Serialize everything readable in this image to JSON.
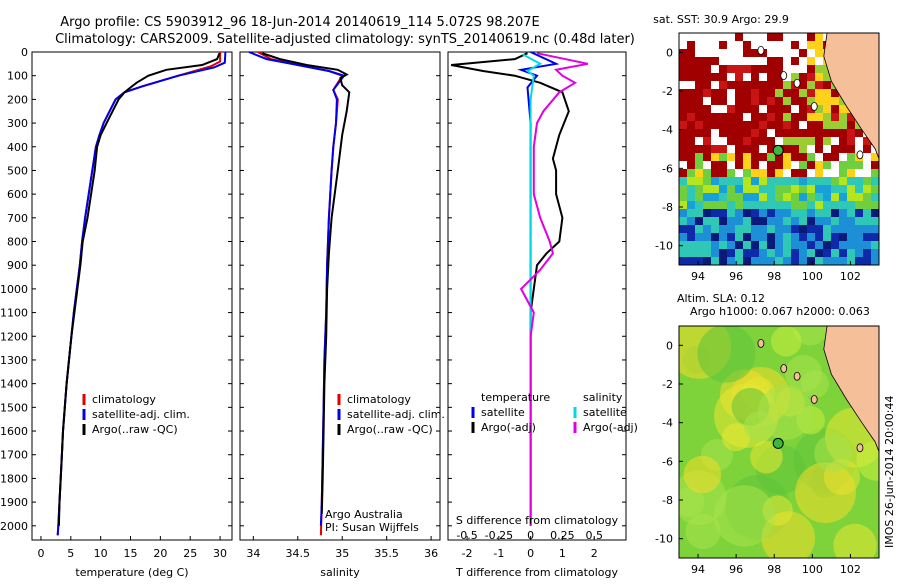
{
  "figure": {
    "title_line1": "Argo profile: CS 5903912_96 18-Jun-2014 20140619_114 5.072S 98.207E",
    "title_line2": "Climatology: CARS2009. Satellite-adjusted climatology: synTS_20140619.nc (0.48d later)",
    "credit_line1": "Argo Australia",
    "credit_line2": "PI: Susan Wijffels",
    "imos_stamp": "IMOS 26-Jun-2014 20:00:44",
    "sst_title": "sat. SST: 30.9 Argo: 29.9",
    "sla_title_line1": "Altim. SLA: 0.12",
    "sla_title_line2": "Argo h1000: 0.067 h2000: 0.063"
  },
  "colors": {
    "climatology": "#e00000",
    "satellite": "#0000ee",
    "argo": "#000000",
    "satellite_salinity": "#00d8e8",
    "argo_salinity": "#e000e0",
    "land": "#f5bf9a"
  },
  "chart_data": [
    {
      "type": "line",
      "id": "temperature",
      "xlabel": "temperature (deg C)",
      "ylabel": "",
      "xlim": [
        -1.5,
        32
      ],
      "ylim": [
        2060,
        0
      ],
      "xticks": [
        0,
        5,
        10,
        15,
        20,
        25,
        30
      ],
      "yticks": [
        0,
        100,
        200,
        300,
        400,
        500,
        600,
        700,
        800,
        900,
        1000,
        1100,
        1200,
        1300,
        1400,
        1500,
        1600,
        1700,
        1800,
        1900,
        2000
      ],
      "legend": [
        "climatology",
        "satellite-adj. clim.",
        "Argo(..raw -QC)"
      ],
      "legend_position": "lower-right",
      "series": [
        {
          "name": "climatology",
          "color": "climatology",
          "points": [
            [
              30.0,
              0
            ],
            [
              30.0,
              40
            ],
            [
              28.5,
              60
            ],
            [
              23,
              100
            ],
            [
              17,
              145
            ],
            [
              14,
              170
            ],
            [
              12.5,
              200
            ],
            [
              11.5,
              250
            ],
            [
              10.5,
              300
            ],
            [
              9.8,
              350
            ],
            [
              9.2,
              400
            ],
            [
              8.6,
              500
            ],
            [
              8.0,
              600
            ],
            [
              7.4,
              700
            ],
            [
              6.9,
              800
            ],
            [
              6.5,
              900
            ],
            [
              6.0,
              1000
            ],
            [
              5.5,
              1100
            ],
            [
              5.1,
              1200
            ],
            [
              4.7,
              1300
            ],
            [
              4.3,
              1400
            ],
            [
              4.0,
              1500
            ],
            [
              3.7,
              1600
            ],
            [
              3.5,
              1700
            ],
            [
              3.3,
              1800
            ],
            [
              3.1,
              1900
            ],
            [
              2.9,
              2000
            ],
            [
              2.8,
              2040
            ]
          ]
        },
        {
          "name": "satellite-adj. clim.",
          "color": "satellite",
          "points": [
            [
              30.9,
              0
            ],
            [
              30.8,
              45
            ],
            [
              29,
              65
            ],
            [
              23,
              100
            ],
            [
              17,
              145
            ],
            [
              14,
              170
            ],
            [
              12.5,
              200
            ],
            [
              11.5,
              250
            ],
            [
              10.5,
              300
            ],
            [
              9.8,
              350
            ],
            [
              9.2,
              400
            ],
            [
              8.6,
              500
            ],
            [
              8.0,
              600
            ],
            [
              7.4,
              700
            ],
            [
              6.9,
              800
            ],
            [
              6.5,
              900
            ],
            [
              6.0,
              1000
            ],
            [
              5.5,
              1100
            ],
            [
              5.1,
              1200
            ],
            [
              4.7,
              1300
            ],
            [
              4.3,
              1400
            ],
            [
              4.0,
              1500
            ],
            [
              3.7,
              1600
            ],
            [
              3.5,
              1700
            ],
            [
              3.3,
              1800
            ],
            [
              3.1,
              1900
            ],
            [
              2.9,
              2000
            ],
            [
              2.8,
              2040
            ]
          ]
        },
        {
          "name": "Argo(..raw -QC)",
          "color": "argo",
          "points": [
            [
              29.9,
              5
            ],
            [
              29.5,
              30
            ],
            [
              27,
              55
            ],
            [
              21,
              75
            ],
            [
              18,
              100
            ],
            [
              16,
              130
            ],
            [
              15,
              150
            ],
            [
              14,
              170
            ],
            [
              13,
              200
            ],
            [
              12,
              250
            ],
            [
              11,
              300
            ],
            [
              10,
              350
            ],
            [
              9.4,
              400
            ],
            [
              9.0,
              500
            ],
            [
              8.4,
              600
            ],
            [
              7.8,
              700
            ],
            [
              7.0,
              800
            ],
            [
              6.6,
              900
            ],
            [
              6.1,
              1000
            ],
            [
              5.6,
              1100
            ],
            [
              5.1,
              1200
            ],
            [
              4.7,
              1300
            ],
            [
              4.3,
              1400
            ],
            [
              4.0,
              1500
            ],
            [
              3.7,
              1600
            ],
            [
              3.5,
              1700
            ],
            [
              3.3,
              1800
            ],
            [
              3.1,
              1900
            ],
            [
              3.0,
              2000
            ]
          ]
        }
      ]
    },
    {
      "type": "line",
      "id": "salinity",
      "xlabel": "salinity",
      "ylabel": "",
      "xlim": [
        33.85,
        36.1
      ],
      "ylim": [
        2060,
        0
      ],
      "xticks": [
        34,
        34.5,
        35,
        35.5,
        36
      ],
      "legend": [
        "climatology",
        "satellite-adj. clim.",
        "Argo(..raw -QC)"
      ],
      "legend_position": "lower-right",
      "series": [
        {
          "name": "climatology",
          "color": "climatology",
          "points": [
            [
              34.05,
              0
            ],
            [
              34.2,
              30
            ],
            [
              34.5,
              55
            ],
            [
              34.85,
              80
            ],
            [
              35.0,
              100
            ],
            [
              34.95,
              130
            ],
            [
              34.9,
              160
            ],
            [
              34.95,
              200
            ],
            [
              34.93,
              300
            ],
            [
              34.9,
              400
            ],
            [
              34.88,
              500
            ],
            [
              34.85,
              700
            ],
            [
              34.83,
              900
            ],
            [
              34.82,
              1100
            ],
            [
              34.8,
              1300
            ],
            [
              34.79,
              1500
            ],
            [
              34.78,
              1700
            ],
            [
              34.77,
              1900
            ],
            [
              34.76,
              2040
            ]
          ]
        },
        {
          "name": "satellite-adj. clim.",
          "color": "satellite",
          "points": [
            [
              33.95,
              0
            ],
            [
              34.15,
              30
            ],
            [
              34.5,
              55
            ],
            [
              34.85,
              80
            ],
            [
              35.02,
              100
            ],
            [
              34.96,
              130
            ],
            [
              34.9,
              160
            ],
            [
              34.94,
              200
            ],
            [
              34.93,
              300
            ],
            [
              34.9,
              400
            ],
            [
              34.88,
              500
            ],
            [
              34.85,
              700
            ],
            [
              34.83,
              900
            ],
            [
              34.82,
              1100
            ],
            [
              34.8,
              1300
            ],
            [
              34.79,
              1500
            ],
            [
              34.78,
              1700
            ],
            [
              34.77,
              1900
            ],
            [
              34.76,
              2000
            ]
          ]
        },
        {
          "name": "Argo(..raw -QC)",
          "color": "argo",
          "points": [
            [
              34.1,
              5
            ],
            [
              34.3,
              30
            ],
            [
              34.6,
              55
            ],
            [
              34.95,
              75
            ],
            [
              35.05,
              95
            ],
            [
              34.98,
              110
            ],
            [
              35.0,
              140
            ],
            [
              35.08,
              170
            ],
            [
              35.05,
              250
            ],
            [
              35.0,
              350
            ],
            [
              34.95,
              500
            ],
            [
              34.88,
              700
            ],
            [
              34.85,
              850
            ],
            [
              34.83,
              1000
            ],
            [
              34.82,
              1200
            ],
            [
              34.8,
              1400
            ],
            [
              34.79,
              1600
            ],
            [
              34.78,
              1800
            ],
            [
              34.77,
              1950
            ]
          ]
        }
      ]
    },
    {
      "type": "line",
      "id": "difference",
      "xlabel": "T difference from climatology",
      "xlabel_top": "S difference from climatology",
      "xlim": [
        -2.6,
        3.0
      ],
      "ylim": [
        2060,
        0
      ],
      "xticks": [
        -2,
        -1,
        0,
        1,
        2
      ],
      "xticks_s": [
        -0.5,
        -0.25,
        0,
        0.25,
        0.5
      ],
      "legend_t_title": "temperature",
      "legend_s_title": "salinity",
      "legend_t": [
        "satellite",
        "Argo(-adj)"
      ],
      "legend_s": [
        "satellite",
        "Argo(-adj)"
      ],
      "series": [
        {
          "name": "T satellite",
          "color": "satellite",
          "points": [
            [
              0,
              0
            ],
            [
              0.8,
              50
            ],
            [
              -0.3,
              75
            ],
            [
              0.2,
              100
            ],
            [
              -0.1,
              150
            ],
            [
              0,
              300
            ],
            [
              0,
              700
            ],
            [
              0,
              2000
            ]
          ]
        },
        {
          "name": "T Argo(-adj)",
          "color": "argo",
          "points": [
            [
              -0.1,
              5
            ],
            [
              -0.5,
              30
            ],
            [
              -2.5,
              55
            ],
            [
              -1.5,
              80
            ],
            [
              -0.5,
              100
            ],
            [
              0.3,
              130
            ],
            [
              1.0,
              170
            ],
            [
              1.2,
              250
            ],
            [
              0.9,
              350
            ],
            [
              0.7,
              450
            ],
            [
              0.8,
              500
            ],
            [
              0.8,
              600
            ],
            [
              1.0,
              700
            ],
            [
              0.9,
              800
            ],
            [
              0.5,
              850
            ],
            [
              0.2,
              900
            ],
            [
              0.1,
              1000
            ],
            [
              0,
              1100
            ],
            [
              0,
              1300
            ],
            [
              0,
              2000
            ]
          ]
        },
        {
          "name": "S satellite",
          "color": "satellite_salinity",
          "points": [
            [
              -0.25,
              10
            ],
            [
              0.3,
              50
            ],
            [
              -0.1,
              80
            ],
            [
              0.1,
              100
            ],
            [
              0,
              200
            ],
            [
              0,
              400
            ],
            [
              0,
              700
            ],
            [
              0,
              2000
            ]
          ]
        },
        {
          "name": "S Argo(-adj)",
          "color": "argo_salinity",
          "points": [
            [
              0.2,
              5
            ],
            [
              1.8,
              50
            ],
            [
              0.8,
              75
            ],
            [
              1.0,
              100
            ],
            [
              1.4,
              130
            ],
            [
              0.9,
              170
            ],
            [
              0.4,
              250
            ],
            [
              0.2,
              300
            ],
            [
              0.1,
              400
            ],
            [
              0.1,
              600
            ],
            [
              0.3,
              700
            ],
            [
              0.6,
              800
            ],
            [
              0.7,
              850
            ],
            [
              0.3,
              920
            ],
            [
              -0.3,
              1000
            ],
            [
              0.1,
              1100
            ],
            [
              0,
              1200
            ],
            [
              0,
              2000
            ]
          ]
        }
      ]
    },
    {
      "type": "heatmap",
      "id": "sst_map",
      "title": "sat. SST: 30.9 Argo: 29.9",
      "xticks": [
        94,
        96,
        98,
        100,
        102
      ],
      "yticks": [
        0,
        -2,
        -4,
        -6,
        -8,
        -10
      ],
      "xlim": [
        93,
        103.5
      ],
      "ylim": [
        -11,
        1
      ],
      "argo_position": [
        98.207,
        -5.072
      ]
    },
    {
      "type": "heatmap",
      "id": "sla_map",
      "title": "Altim. SLA: 0.12",
      "xticks": [
        94,
        96,
        98,
        100,
        102
      ],
      "yticks": [
        0,
        -2,
        -4,
        -6,
        -8,
        -10
      ],
      "xlim": [
        93,
        103.5
      ],
      "ylim": [
        -11,
        1
      ],
      "argo_position": [
        98.207,
        -5.072
      ]
    }
  ]
}
